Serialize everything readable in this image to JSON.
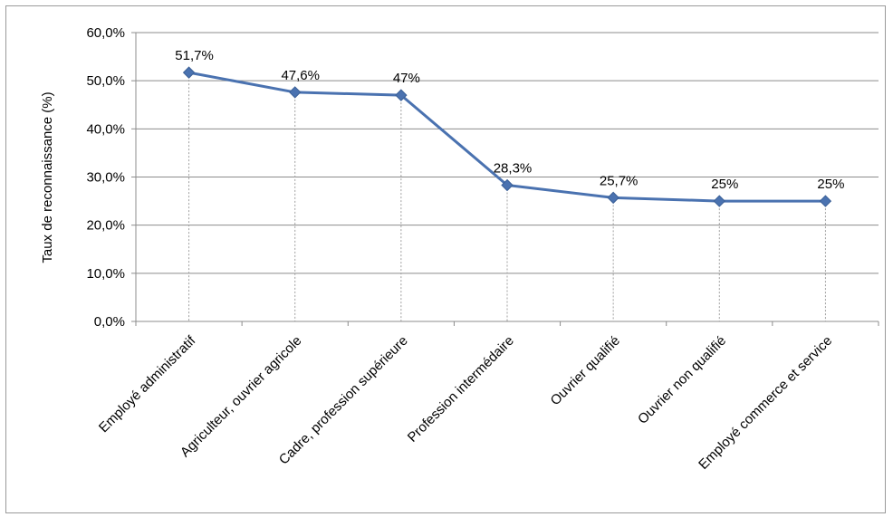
{
  "chart_data": {
    "type": "line",
    "title": "",
    "xlabel": "",
    "ylabel": "Taux de reconnaissance (%)",
    "ylim": [
      0,
      60
    ],
    "y_ticks": [
      "0,0%",
      "10,0%",
      "20,0%",
      "30,0%",
      "40,0%",
      "50,0%",
      "60,0%"
    ],
    "y_tick_values": [
      0,
      10,
      20,
      30,
      40,
      50,
      60
    ],
    "categories": [
      "Employé administratif",
      "Agriculteur, ouvrier agricole",
      "Cadre, profession supérieure",
      "Profession intermédaire",
      "Ouvrier qualifié",
      "Ouvrier non qualifié",
      "Employé commerce et service"
    ],
    "series": [
      {
        "values": [
          51.7,
          47.6,
          47,
          28.3,
          25.7,
          25,
          25
        ],
        "data_labels": [
          "51,7%",
          "47,6%",
          "47%",
          "28,3%",
          "25,7%",
          "25%",
          "25%"
        ],
        "color": "#4a72b0"
      }
    ],
    "grid": true,
    "legend": "none",
    "drop_lines": true
  }
}
